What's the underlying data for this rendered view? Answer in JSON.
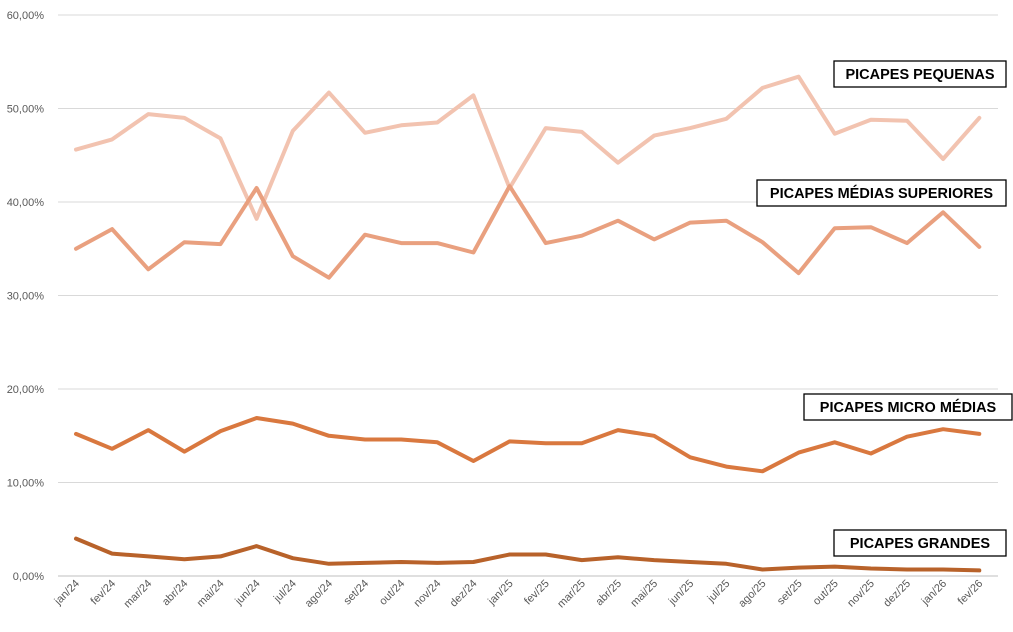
{
  "chart_data": {
    "type": "line",
    "title": "",
    "xlabel": "",
    "ylabel": "",
    "ylim": [
      0,
      60
    ],
    "yticks": [
      "0,00%",
      "10,00%",
      "20,00%",
      "30,00%",
      "40,00%",
      "50,00%",
      "60,00%"
    ],
    "grid": true,
    "legend": "inline-labels-right",
    "categories": [
      "jan/24",
      "fev/24",
      "mar/24",
      "abr/24",
      "mai/24",
      "jun/24",
      "jul/24",
      "ago/24",
      "set/24",
      "out/24",
      "nov/24",
      "dez/24",
      "jan/25",
      "fev/25",
      "mar/25",
      "abr/25",
      "mai/25",
      "jun/25",
      "jul/25",
      "ago/25",
      "set/25",
      "out/25",
      "nov/25",
      "dez/25",
      "jan/26",
      "fev/26"
    ],
    "series": [
      {
        "name": "PICAPES PEQUENAS",
        "color": "#f2c3b0",
        "values": [
          45.6,
          46.7,
          49.4,
          49.0,
          46.8,
          38.2,
          47.6,
          51.7,
          47.4,
          48.2,
          48.5,
          51.4,
          41.5,
          47.9,
          47.5,
          44.2,
          47.1,
          47.9,
          48.9,
          52.2,
          53.4,
          47.3,
          48.8,
          48.7,
          44.6,
          49.0
        ]
      },
      {
        "name": "PICAPES MÉDIAS SUPERIORES",
        "color": "#e9a07f",
        "values": [
          35.0,
          37.1,
          32.8,
          35.7,
          35.5,
          41.5,
          34.2,
          31.9,
          36.5,
          35.6,
          35.6,
          34.6,
          41.7,
          35.6,
          36.4,
          38.0,
          36.0,
          37.8,
          38.0,
          35.7,
          32.4,
          37.2,
          37.3,
          35.6,
          38.9,
          35.2
        ]
      },
      {
        "name": "PICAPES MICRO MÉDIAS",
        "color": "#d9783f",
        "values": [
          15.2,
          13.6,
          15.6,
          13.3,
          15.5,
          16.9,
          16.3,
          15.0,
          14.6,
          14.6,
          14.3,
          12.3,
          14.4,
          14.2,
          14.2,
          15.6,
          15.0,
          12.7,
          11.7,
          11.2,
          13.2,
          14.3,
          13.1,
          14.9,
          15.7,
          15.2
        ]
      },
      {
        "name": "PICAPES GRANDES",
        "color": "#b8622a",
        "values": [
          4.0,
          2.4,
          2.1,
          1.8,
          2.1,
          3.2,
          1.9,
          1.3,
          1.4,
          1.5,
          1.4,
          1.5,
          2.3,
          2.3,
          1.7,
          2.0,
          1.7,
          1.5,
          1.3,
          0.7,
          0.9,
          1.0,
          0.8,
          0.7,
          0.7,
          0.6
        ]
      }
    ]
  }
}
